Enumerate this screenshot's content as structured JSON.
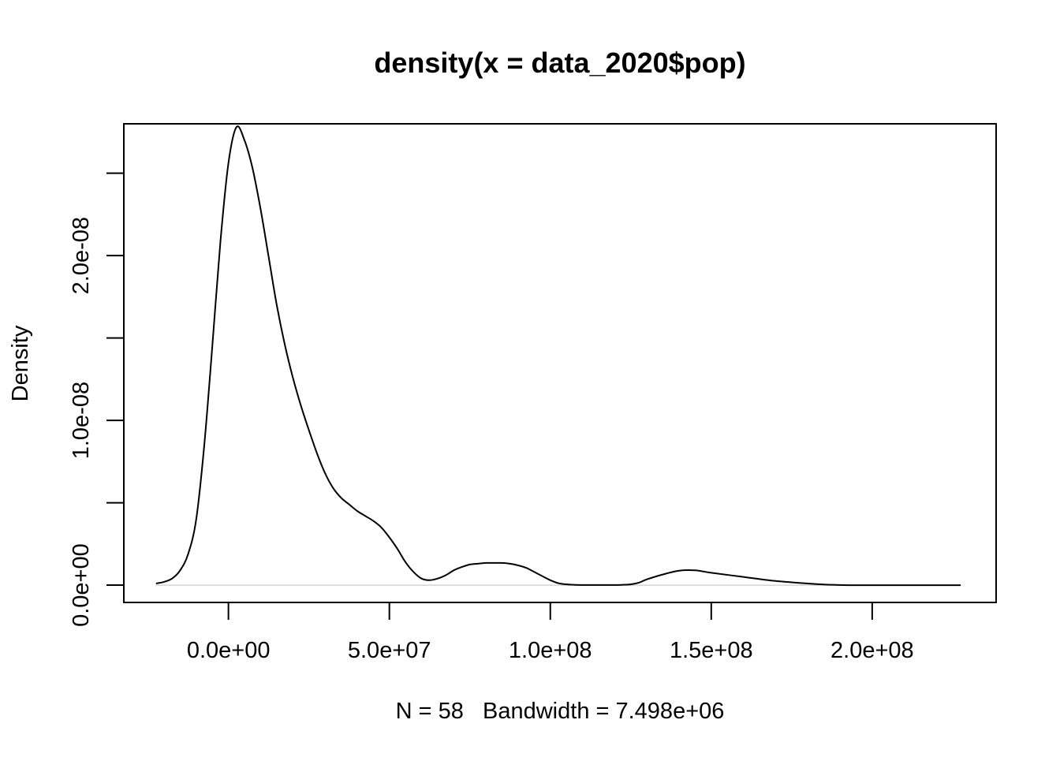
{
  "chart_data": {
    "type": "line",
    "title": "density(x = data_2020$pop)",
    "xlabel": "N = 58   Bandwidth = 7.498e+06",
    "ylabel": "Density",
    "xlim": [
      -32500000,
      238500000
    ],
    "ylim": [
      -1.05e-09,
      2.8e-08
    ],
    "x_ticks": [
      {
        "value": 0,
        "label": "0.0e+00"
      },
      {
        "value": 50000000,
        "label": "5.0e+07"
      },
      {
        "value": 100000000,
        "label": "1.0e+08"
      },
      {
        "value": 150000000,
        "label": "1.5e+08"
      },
      {
        "value": 200000000,
        "label": "2.0e+08"
      }
    ],
    "y_ticks": [
      {
        "value": 0,
        "label": "0.0e+00"
      },
      {
        "value": 5e-09,
        "label": ""
      },
      {
        "value": 1e-08,
        "label": "1.0e-08"
      },
      {
        "value": 1.5e-08,
        "label": ""
      },
      {
        "value": 2e-08,
        "label": "2.0e-08"
      },
      {
        "value": 2.5e-08,
        "label": ""
      }
    ],
    "zero_line": true,
    "grid": false,
    "legend": false,
    "series": [
      {
        "x": [
          -22500000,
          -20000000,
          -17500000,
          -15000000,
          -12500000,
          -10000000,
          -7500000,
          -5000000,
          -2500000,
          0,
          2500000,
          5000000,
          7500000,
          10000000,
          12500000,
          15000000,
          17500000,
          20000000,
          22500000,
          25000000,
          27500000,
          30000000,
          32500000,
          35000000,
          37500000,
          40000000,
          42500000,
          45000000,
          47500000,
          50000000,
          52500000,
          55000000,
          57500000,
          60000000,
          62500000,
          65000000,
          67500000,
          70000000,
          72500000,
          75000000,
          77500000,
          80000000,
          82500000,
          85000000,
          87500000,
          90000000,
          92500000,
          95000000,
          97500000,
          100000000,
          102500000,
          105000000,
          107500000,
          110000000,
          112500000,
          115000000,
          117500000,
          120000000,
          122500000,
          125000000,
          127500000,
          130000000,
          135000000,
          140000000,
          145000000,
          150000000,
          160000000,
          170000000,
          180000000,
          185000000,
          190000000,
          192500000,
          195000000,
          197500000,
          200000000,
          202500000,
          205000000,
          207500000,
          210000000,
          212500000,
          215000000,
          217500000,
          220000000,
          222500000,
          225000000,
          227500000
        ],
        "y": [
          1e-10,
          2e-10,
          4e-10,
          9e-10,
          1.9e-09,
          4e-09,
          8.5e-09,
          1.45e-08,
          2.08e-08,
          2.56e-08,
          2.78e-08,
          2.7e-08,
          2.53e-08,
          2.28e-08,
          1.99e-08,
          1.7e-08,
          1.46e-08,
          1.26e-08,
          1.09e-08,
          9.4e-09,
          8e-09,
          6.8e-09,
          5.9e-09,
          5.3e-09,
          4.9e-09,
          4.5e-09,
          4.2e-09,
          3.9e-09,
          3.5e-09,
          2.9e-09,
          2.2e-09,
          1.4e-09,
          8e-10,
          4e-10,
          3e-10,
          4e-10,
          6e-10,
          9e-10,
          1.1e-09,
          1.25e-09,
          1.3e-09,
          1.35e-09,
          1.35e-09,
          1.35e-09,
          1.3e-09,
          1.2e-09,
          1.05e-09,
          8e-10,
          5.5e-10,
          3e-10,
          1.2e-10,
          5e-11,
          2e-11,
          1e-11,
          1e-11,
          1e-11,
          1e-11,
          1e-11,
          2e-11,
          5e-11,
          1.5e-10,
          3.5e-10,
          6.5e-10,
          8.8e-10,
          9e-10,
          7.5e-10,
          5e-10,
          2.5e-10,
          1e-10,
          4e-11,
          1e-11,
          0.0,
          0.0,
          0.0,
          0.0,
          0.0,
          0.0,
          0.0,
          0.0,
          0.0,
          0.0,
          0.0,
          0.0,
          0.0,
          0.0,
          0.0
        ]
      }
    ]
  }
}
